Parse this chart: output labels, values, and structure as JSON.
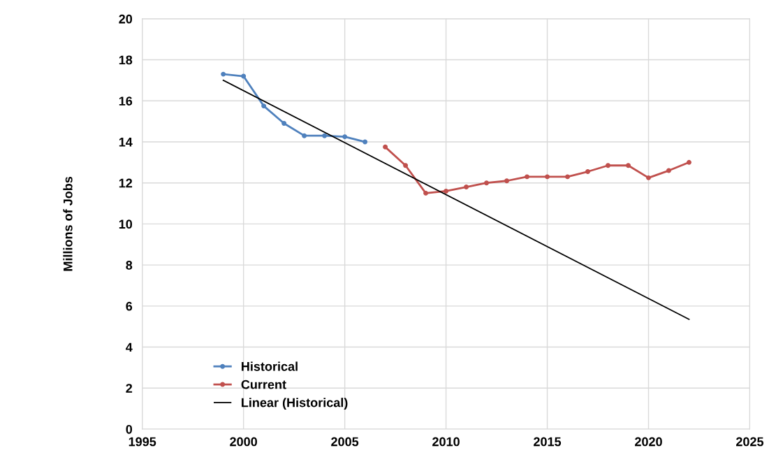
{
  "chart_data": {
    "type": "line",
    "ylabel": "Millions of Jobs",
    "xlim": [
      1995,
      2025
    ],
    "xticks": [
      1995,
      2000,
      2005,
      2010,
      2015,
      2020,
      2025
    ],
    "ylim": [
      0,
      20
    ],
    "yticks": [
      0,
      2,
      4,
      6,
      8,
      10,
      12,
      14,
      16,
      18,
      20
    ],
    "grid": true,
    "legend": "bottom left",
    "series": [
      {
        "name": "Historical",
        "color": "#4f81bd",
        "marker": "circle",
        "x": [
          1999,
          2000,
          2001,
          2002,
          2003,
          2004,
          2005,
          2006
        ],
        "values": [
          17.3,
          17.2,
          15.75,
          14.9,
          14.3,
          14.3,
          14.25,
          14.0
        ]
      },
      {
        "name": "Current",
        "color": "#c0504d",
        "marker": "circle",
        "x": [
          2007,
          2008,
          2009,
          2010,
          2011,
          2012,
          2013,
          2014,
          2015,
          2016,
          2017,
          2018,
          2019,
          2020,
          2021,
          2022
        ],
        "values": [
          13.75,
          12.85,
          11.5,
          11.6,
          11.8,
          12.0,
          12.1,
          12.3,
          12.3,
          12.3,
          12.55,
          12.85,
          12.85,
          12.25,
          12.6,
          13.0
        ]
      },
      {
        "name": "Linear (Historical)",
        "color": "#000000",
        "marker": "none",
        "x": [
          1999,
          2022
        ],
        "values": [
          17.0,
          5.35
        ]
      }
    ]
  }
}
